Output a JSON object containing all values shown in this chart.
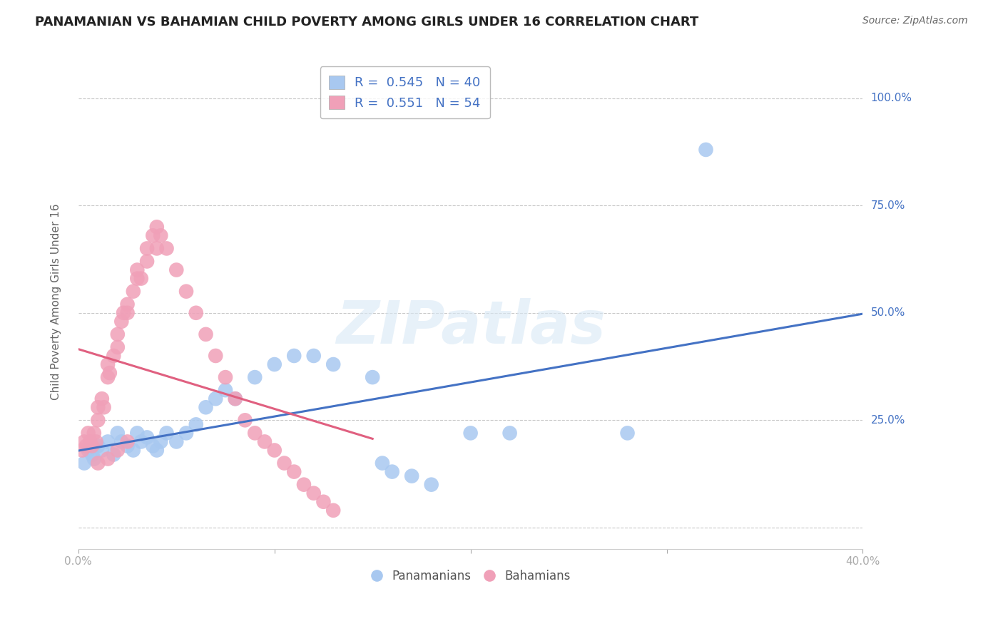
{
  "title": "PANAMANIAN VS BAHAMIAN CHILD POVERTY AMONG GIRLS UNDER 16 CORRELATION CHART",
  "source": "Source: ZipAtlas.com",
  "ylabel": "Child Poverty Among Girls Under 16",
  "xlim": [
    0.0,
    0.4
  ],
  "ylim": [
    -0.05,
    1.1
  ],
  "ytick_positions": [
    0.0,
    0.25,
    0.5,
    0.75,
    1.0
  ],
  "yticklabels": [
    "",
    "25.0%",
    "50.0%",
    "75.0%",
    "100.0%"
  ],
  "grid_color": "#c8c8c8",
  "background_color": "#ffffff",
  "watermark": "ZIPatlas",
  "blue_color": "#a8c8f0",
  "pink_color": "#f0a0b8",
  "blue_line_color": "#4472c4",
  "pink_line_color": "#e06080",
  "R_blue": 0.545,
  "N_blue": 40,
  "R_pink": 0.551,
  "N_pink": 54,
  "legend_text_color": "#4472c4",
  "blue_scatter_x": [
    0.003,
    0.005,
    0.007,
    0.008,
    0.01,
    0.012,
    0.015,
    0.018,
    0.02,
    0.022,
    0.025,
    0.028,
    0.03,
    0.032,
    0.035,
    0.038,
    0.04,
    0.042,
    0.045,
    0.05,
    0.055,
    0.06,
    0.065,
    0.07,
    0.075,
    0.08,
    0.09,
    0.1,
    0.11,
    0.12,
    0.13,
    0.15,
    0.155,
    0.16,
    0.17,
    0.18,
    0.2,
    0.22,
    0.28,
    0.32
  ],
  "blue_scatter_y": [
    0.15,
    0.18,
    0.17,
    0.16,
    0.19,
    0.18,
    0.2,
    0.17,
    0.22,
    0.2,
    0.19,
    0.18,
    0.22,
    0.2,
    0.21,
    0.19,
    0.18,
    0.2,
    0.22,
    0.2,
    0.22,
    0.24,
    0.28,
    0.3,
    0.32,
    0.3,
    0.35,
    0.38,
    0.4,
    0.4,
    0.38,
    0.35,
    0.15,
    0.13,
    0.12,
    0.1,
    0.22,
    0.22,
    0.22,
    0.88
  ],
  "pink_scatter_x": [
    0.002,
    0.003,
    0.004,
    0.005,
    0.006,
    0.007,
    0.008,
    0.009,
    0.01,
    0.01,
    0.012,
    0.013,
    0.015,
    0.015,
    0.016,
    0.018,
    0.02,
    0.02,
    0.022,
    0.023,
    0.025,
    0.025,
    0.028,
    0.03,
    0.03,
    0.032,
    0.035,
    0.035,
    0.038,
    0.04,
    0.04,
    0.042,
    0.045,
    0.05,
    0.055,
    0.06,
    0.065,
    0.07,
    0.075,
    0.08,
    0.085,
    0.09,
    0.095,
    0.1,
    0.105,
    0.11,
    0.115,
    0.12,
    0.125,
    0.13,
    0.01,
    0.015,
    0.02,
    0.025
  ],
  "pink_scatter_y": [
    0.18,
    0.2,
    0.19,
    0.22,
    0.2,
    0.19,
    0.22,
    0.2,
    0.25,
    0.28,
    0.3,
    0.28,
    0.35,
    0.38,
    0.36,
    0.4,
    0.42,
    0.45,
    0.48,
    0.5,
    0.5,
    0.52,
    0.55,
    0.58,
    0.6,
    0.58,
    0.62,
    0.65,
    0.68,
    0.65,
    0.7,
    0.68,
    0.65,
    0.6,
    0.55,
    0.5,
    0.45,
    0.4,
    0.35,
    0.3,
    0.25,
    0.22,
    0.2,
    0.18,
    0.15,
    0.13,
    0.1,
    0.08,
    0.06,
    0.04,
    0.15,
    0.16,
    0.18,
    0.2
  ]
}
